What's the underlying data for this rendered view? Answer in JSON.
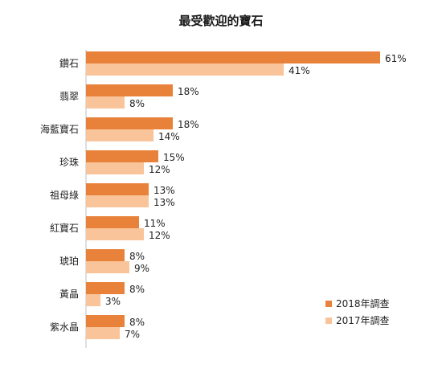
{
  "chart_data": {
    "type": "bar",
    "orientation": "horizontal",
    "title": "最受歡迎的寶石",
    "categories": [
      "鑽石",
      "翡翠",
      "海藍寶石",
      "珍珠",
      "祖母綠",
      "紅寶石",
      "琥珀",
      "黃晶",
      "紫水晶"
    ],
    "series": [
      {
        "name": "2018年調查",
        "values": [
          61,
          18,
          18,
          15,
          13,
          11,
          8,
          8,
          8
        ],
        "labels": [
          "61%",
          "18%",
          "18%",
          "15%",
          "13%",
          "11%",
          "8%",
          "8%",
          "8%"
        ],
        "color": "#E8823A"
      },
      {
        "name": "2017年調查",
        "values": [
          41,
          8,
          14,
          12,
          13,
          12,
          9,
          3,
          7
        ],
        "labels": [
          "41%",
          "8%",
          "14%",
          "12%",
          "13%",
          "12%",
          "9%",
          "3%",
          "7%"
        ],
        "color": "#F9C49A"
      }
    ],
    "xlim": [
      0,
      100
    ],
    "grid": false,
    "legend_position": "bottom-right"
  }
}
